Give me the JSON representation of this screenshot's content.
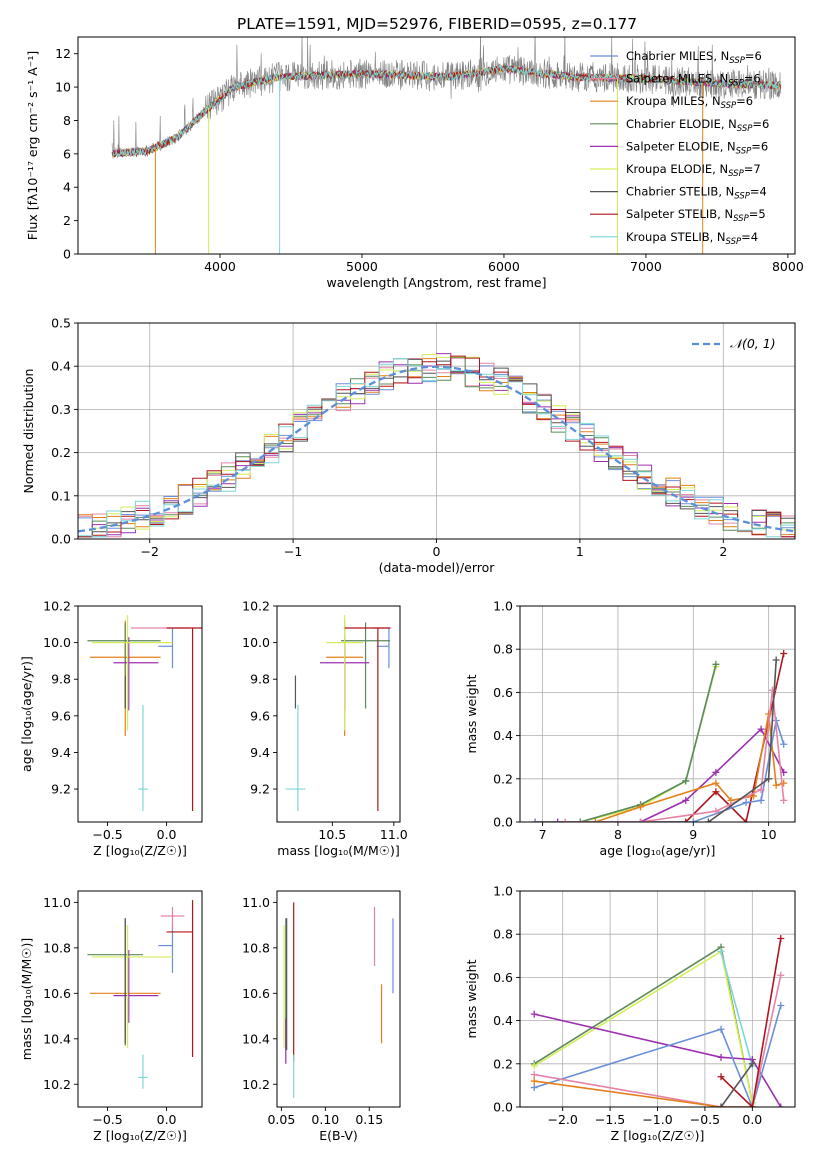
{
  "figure": {
    "title": "PLATE=1591, MJD=52976, FIBERID=0595, z=0.177"
  },
  "colors": {
    "Chabrier MILES": "#6a8fd8",
    "Salpeter MILES": "#e583a6",
    "Kroupa MILES": "#e4801b",
    "Chabrier ELODIE": "#5c8a5c",
    "Salpeter ELODIE": "#9b30b0",
    "Kroupa ELODIE": "#d4ee5a",
    "Chabrier STELIB": "#555555",
    "Salpeter STELIB": "#b0151f",
    "Kroupa STELIB": "#7fd6d6",
    "normal": "#5b8fd9",
    "grid": "#b0b0b0"
  },
  "chart_data": [
    {
      "id": "spectrum",
      "type": "line",
      "xlabel": "wavelength [Angstrom, rest frame]",
      "ylabel": "Flux [fλ10⁻¹⁷ erg cm⁻² s⁻¹ A⁻¹]",
      "xlim": [
        3000,
        8050
      ],
      "ylim": [
        0,
        13
      ],
      "xticks": [
        4000,
        5000,
        6000,
        7000,
        8000
      ],
      "yticks": [
        0,
        2,
        4,
        6,
        8,
        10,
        12
      ],
      "grid": false,
      "legend_position": "right",
      "legend": [
        {
          "model": "Chabrier MILES",
          "label": "Chabrier MILES, N",
          "n": "=6"
        },
        {
          "model": "Salpeter MILES",
          "label": "Salpeter MILES, N",
          "n": "=6"
        },
        {
          "model": "Kroupa MILES",
          "label": "Kroupa MILES, N",
          "n": "=6"
        },
        {
          "model": "Chabrier ELODIE",
          "label": "Chabrier ELODIE, N",
          "n": "=6"
        },
        {
          "model": "Salpeter ELODIE",
          "label": "Salpeter ELODIE, N",
          "n": "=6"
        },
        {
          "model": "Kroupa ELODIE",
          "label": "Kroupa ELODIE, N",
          "n": "=7"
        },
        {
          "model": "Chabrier STELIB",
          "label": "Chabrier STELIB, N",
          "n": "=4"
        },
        {
          "model": "Salpeter STELIB",
          "label": "Salpeter STELIB, N",
          "n": "=5"
        },
        {
          "model": "Kroupa STELIB",
          "label": "Kroupa STELIB, N",
          "n": "=4"
        }
      ],
      "legend_subscript": "SSP",
      "data_range": [
        3240,
        7950
      ],
      "continuum": [
        [
          3240,
          6.0
        ],
        [
          3500,
          6.2
        ],
        [
          3700,
          7.0
        ],
        [
          3900,
          8.6
        ],
        [
          4100,
          10.0
        ],
        [
          4400,
          10.6
        ],
        [
          5000,
          10.8
        ],
        [
          5600,
          10.6
        ],
        [
          6000,
          11.1
        ],
        [
          6500,
          10.6
        ],
        [
          7000,
          10.5
        ],
        [
          7500,
          10.2
        ],
        [
          7950,
          10.1
        ]
      ],
      "drops": [
        {
          "x": 3545,
          "model": "Kroupa MILES"
        },
        {
          "x": 3920,
          "model": "Kroupa ELODIE"
        },
        {
          "x": 4420,
          "model": "Kroupa STELIB"
        },
        {
          "x": 6800,
          "model": "Kroupa ELODIE"
        },
        {
          "x": 7400,
          "model": "Kroupa MILES"
        }
      ]
    },
    {
      "id": "residuals",
      "type": "histogram",
      "xlabel": "(data-model)/error",
      "ylabel": "Normed distribution",
      "xlim": [
        -2.5,
        2.5
      ],
      "ylim": [
        0,
        0.5
      ],
      "xticks": [
        -2,
        -1,
        0,
        1,
        2
      ],
      "yticks": [
        0.0,
        0.1,
        0.2,
        0.3,
        0.4,
        0.5
      ],
      "grid": true,
      "bin_width": 0.1,
      "legend": [
        {
          "label": "𝒩(0, 1)"
        }
      ],
      "legend_position": "top-right"
    },
    {
      "id": "age-vs-Z",
      "type": "errorbar",
      "xlabel": "Z [log₁₀(Z/Z☉)]",
      "ylabel": "age  [log₁₀(age/yr)]",
      "xlim": [
        -0.75,
        0.3
      ],
      "ylim": [
        9.02,
        10.2
      ],
      "xticks": [
        -0.5,
        0.0
      ],
      "yticks": [
        9.2,
        9.4,
        9.6,
        9.8,
        10.0,
        10.2
      ],
      "grid": false,
      "points": [
        {
          "model": "Chabrier MILES",
          "x": 0.05,
          "xerr": [
            0.12,
            0.0
          ],
          "y": 9.98,
          "yerr": [
            0.12,
            0.1
          ]
        },
        {
          "model": "Salpeter MILES",
          "x": -0.05,
          "xerr": [
            0.25,
            0.25
          ],
          "y": 10.08,
          "yerr": [
            0.0,
            0.0
          ]
        },
        {
          "model": "Kroupa MILES",
          "x": -0.35,
          "xerr": [
            0.3,
            0.3
          ],
          "y": 9.92,
          "yerr": [
            0.43,
            0.2
          ]
        },
        {
          "model": "Chabrier ELODIE",
          "x": -0.35,
          "xerr": [
            0.32,
            0.3
          ],
          "y": 10.01,
          "yerr": [
            0.37,
            0.1
          ]
        },
        {
          "model": "Salpeter ELODIE",
          "x": -0.32,
          "xerr": [
            0.13,
            0.25
          ],
          "y": 9.89,
          "yerr": [
            0.26,
            0.14
          ]
        },
        {
          "model": "Kroupa ELODIE",
          "x": -0.33,
          "xerr": [
            0.3,
            0.38
          ],
          "y": 10.0,
          "yerr": [
            0.48,
            0.15
          ]
        },
        {
          "model": "Chabrier STELIB",
          "x": -0.35,
          "xerr": [
            0.0,
            0.0
          ],
          "y": 9.73,
          "yerr": [
            0.09,
            0.09
          ]
        },
        {
          "model": "Salpeter STELIB",
          "x": 0.22,
          "xerr": [
            0.22,
            0.1
          ],
          "y": 10.08,
          "yerr": [
            1.0,
            0.0
          ]
        },
        {
          "model": "Kroupa STELIB",
          "x": -0.2,
          "xerr": [
            0.04,
            0.04
          ],
          "y": 9.2,
          "yerr": [
            0.12,
            0.46
          ]
        }
      ]
    },
    {
      "id": "age-vs-mass",
      "type": "errorbar",
      "xlabel": "mass [log₁₀(M/M☉)]",
      "ylabel": "",
      "xlim": [
        10.05,
        11.05
      ],
      "ylim": [
        9.02,
        10.2
      ],
      "xticks": [
        10.5,
        11.0
      ],
      "yticks": [
        9.2,
        9.4,
        9.6,
        9.8,
        10.0,
        10.2
      ],
      "grid": false,
      "points": [
        {
          "model": "Chabrier MILES",
          "x": 10.96,
          "xerr": [
            0.1,
            0.0
          ],
          "y": 9.98,
          "yerr": [
            0.12,
            0.1
          ]
        },
        {
          "model": "Salpeter MILES",
          "x": 10.93,
          "xerr": [
            0.1,
            0.05
          ],
          "y": 10.08,
          "yerr": [
            0.0,
            0.0
          ]
        },
        {
          "model": "Kroupa MILES",
          "x": 10.6,
          "xerr": [
            0.15,
            0.15
          ],
          "y": 9.92,
          "yerr": [
            0.43,
            0.2
          ]
        },
        {
          "model": "Chabrier ELODIE",
          "x": 10.77,
          "xerr": [
            0.2,
            0.2
          ],
          "y": 10.01,
          "yerr": [
            0.37,
            0.1
          ]
        },
        {
          "model": "Salpeter ELODIE",
          "x": 10.6,
          "xerr": [
            0.2,
            0.2
          ],
          "y": 9.89,
          "yerr": [
            0.26,
            0.14
          ]
        },
        {
          "model": "Kroupa ELODIE",
          "x": 10.6,
          "xerr": [
            0.15,
            0.15
          ],
          "y": 10.0,
          "yerr": [
            0.48,
            0.15
          ]
        },
        {
          "model": "Chabrier STELIB",
          "x": 10.2,
          "xerr": [
            0.0,
            0.0
          ],
          "y": 9.73,
          "yerr": [
            0.09,
            0.09
          ]
        },
        {
          "model": "Salpeter STELIB",
          "x": 10.87,
          "xerr": [
            0.27,
            0.1
          ],
          "y": 10.08,
          "yerr": [
            1.0,
            0.0
          ]
        },
        {
          "model": "Kroupa STELIB",
          "x": 10.22,
          "xerr": [
            0.1,
            0.06
          ],
          "y": 9.2,
          "yerr": [
            0.12,
            0.46
          ]
        }
      ]
    },
    {
      "id": "massweight-vs-age",
      "type": "line",
      "xlabel": "age  [log₁₀(age/yr)]",
      "ylabel": "mass weight",
      "xlim": [
        6.7,
        10.35
      ],
      "ylim": [
        0.0,
        1.0
      ],
      "xticks": [
        7,
        8,
        9,
        10
      ],
      "yticks": [
        0.0,
        0.2,
        0.4,
        0.6,
        0.8,
        1.0
      ],
      "grid": true,
      "series": [
        {
          "model": "Kroupa STELIB",
          "x": [
            7.5,
            8.3,
            8.9,
            9.3
          ],
          "y": [
            0.0,
            0.08,
            0.19,
            0.72
          ]
        },
        {
          "model": "Kroupa ELODIE",
          "x": [
            6.9,
            7.5,
            8.3,
            8.9,
            9.3
          ],
          "y": [
            0.0,
            0.0,
            0.07,
            0.19,
            0.72
          ]
        },
        {
          "model": "Chabrier ELODIE",
          "x": [
            7.5,
            8.3,
            8.9,
            9.3
          ],
          "y": [
            0.0,
            0.08,
            0.19,
            0.73
          ]
        },
        {
          "model": "Salpeter STELIB",
          "x": [
            8.3,
            8.9,
            9.3,
            9.7,
            10.2
          ],
          "y": [
            0.0,
            0.0,
            0.14,
            0.0,
            0.78
          ]
        },
        {
          "model": "Salpeter ELODIE",
          "x": [
            7.2,
            8.3,
            8.9,
            9.3,
            9.9,
            10.2
          ],
          "y": [
            0.0,
            0.0,
            0.1,
            0.23,
            0.43,
            0.23
          ]
        },
        {
          "model": "Kroupa MILES",
          "x": [
            6.9,
            7.7,
            8.3,
            9.3,
            9.5,
            9.8,
            10.0,
            10.1,
            10.2
          ],
          "y": [
            0.0,
            0.0,
            0.07,
            0.18,
            0.1,
            0.12,
            0.5,
            0.17,
            0.18
          ]
        },
        {
          "model": "Chabrier MILES",
          "x": [
            6.9,
            8.3,
            9.0,
            9.7,
            9.9,
            10.1,
            10.2
          ],
          "y": [
            0.0,
            0.0,
            0.0,
            0.09,
            0.1,
            0.47,
            0.36
          ]
        },
        {
          "model": "Salpeter MILES",
          "x": [
            7.3,
            8.3,
            9.3,
            9.9,
            10.05,
            10.2
          ],
          "y": [
            0.0,
            0.0,
            0.05,
            0.15,
            0.61,
            0.1
          ]
        },
        {
          "model": "Chabrier STELIB",
          "x": [
            9.2,
            10.0,
            10.1
          ],
          "y": [
            0.0,
            0.2,
            0.75
          ]
        }
      ]
    },
    {
      "id": "mass-vs-Z",
      "type": "errorbar",
      "xlabel": "Z [log₁₀(Z/Z☉)]",
      "ylabel": "mass [log₁₀(M/M☉)]",
      "xlim": [
        -0.75,
        0.3
      ],
      "ylim": [
        10.1,
        11.05
      ],
      "xticks": [
        -0.5,
        0.0
      ],
      "yticks": [
        10.2,
        10.4,
        10.6,
        10.8,
        11.0
      ],
      "grid": false,
      "points": [
        {
          "model": "Chabrier MILES",
          "x": 0.05,
          "xerr": [
            0.12,
            0.0
          ],
          "y": 10.81,
          "yerr": [
            0.12,
            0.1
          ]
        },
        {
          "model": "Salpeter MILES",
          "x": 0.05,
          "xerr": [
            0.1,
            0.1
          ],
          "y": 10.94,
          "yerr": [
            0.06,
            0.04
          ]
        },
        {
          "model": "Kroupa MILES",
          "x": -0.35,
          "xerr": [
            0.3,
            0.3
          ],
          "y": 10.6,
          "yerr": [
            0.2,
            0.0
          ]
        },
        {
          "model": "Chabrier ELODIE",
          "x": -0.35,
          "xerr": [
            0.32,
            0.15
          ],
          "y": 10.77,
          "yerr": [
            0.4,
            0.16
          ]
        },
        {
          "model": "Salpeter ELODIE",
          "x": -0.32,
          "xerr": [
            0.13,
            0.25
          ],
          "y": 10.59,
          "yerr": [
            0.12,
            0.2
          ]
        },
        {
          "model": "Kroupa ELODIE",
          "x": -0.33,
          "xerr": [
            0.3,
            0.38
          ],
          "y": 10.76,
          "yerr": [
            0.4,
            0.14
          ]
        },
        {
          "model": "Chabrier STELIB",
          "x": -0.35,
          "xerr": [
            0.0,
            0.0
          ],
          "y": 10.6,
          "yerr": [
            0.22,
            0.33
          ]
        },
        {
          "model": "Salpeter STELIB",
          "x": 0.22,
          "xerr": [
            0.22,
            0.0
          ],
          "y": 10.87,
          "yerr": [
            0.55,
            0.14
          ]
        },
        {
          "model": "Kroupa STELIB",
          "x": -0.2,
          "xerr": [
            0.04,
            0.04
          ],
          "y": 10.23,
          "yerr": [
            0.05,
            0.1
          ]
        }
      ]
    },
    {
      "id": "mass-vs-ebv",
      "type": "errorbar",
      "xlabel": "E(B-V)",
      "ylabel": "",
      "xlim": [
        0.045,
        0.185
      ],
      "ylim": [
        10.1,
        11.05
      ],
      "xticks": [
        0.05,
        0.1,
        0.15
      ],
      "yticks": [
        10.2,
        10.4,
        10.6,
        10.8,
        11.0
      ],
      "grid": false,
      "points": [
        {
          "model": "Chabrier MILES",
          "x": 0.177,
          "xerr": [
            0,
            0
          ],
          "y": 10.77,
          "yerr": [
            0.17,
            0.16
          ]
        },
        {
          "model": "Salpeter MILES",
          "x": 0.156,
          "xerr": [
            0,
            0
          ],
          "y": 10.85,
          "yerr": [
            0.13,
            0.13
          ]
        },
        {
          "model": "Kroupa MILES",
          "x": 0.164,
          "xerr": [
            0,
            0
          ],
          "y": 10.6,
          "yerr": [
            0.22,
            0.04
          ]
        },
        {
          "model": "Chabrier ELODIE",
          "x": 0.055,
          "xerr": [
            0,
            0
          ],
          "y": 10.65,
          "yerr": [
            0.3,
            0.28
          ]
        },
        {
          "model": "Salpeter ELODIE",
          "x": 0.055,
          "xerr": [
            0,
            0
          ],
          "y": 10.39,
          "yerr": [
            0.1,
            0.1
          ]
        },
        {
          "model": "Kroupa ELODIE",
          "x": 0.053,
          "xerr": [
            0,
            0
          ],
          "y": 10.66,
          "yerr": [
            0.3,
            0.24
          ]
        },
        {
          "model": "Chabrier STELIB",
          "x": 0.056,
          "xerr": [
            0,
            0
          ],
          "y": 10.6,
          "yerr": [
            0.25,
            0.33
          ]
        },
        {
          "model": "Salpeter STELIB",
          "x": 0.064,
          "xerr": [
            0,
            0
          ],
          "y": 10.7,
          "yerr": [
            0.4,
            0.3
          ]
        },
        {
          "model": "Kroupa STELIB",
          "x": 0.064,
          "xerr": [
            0,
            0
          ],
          "y": 10.23,
          "yerr": [
            0.09,
            0.1
          ]
        }
      ]
    },
    {
      "id": "massweight-vs-Z",
      "type": "line",
      "xlabel": "Z [log₁₀(Z/Z☉)]",
      "ylabel": "mass weight",
      "xlim": [
        -2.45,
        0.45
      ],
      "ylim": [
        0.0,
        1.0
      ],
      "xticks": [
        -2.0,
        -1.5,
        -1.0,
        -0.5,
        0.0
      ],
      "yticks": [
        0.0,
        0.2,
        0.4,
        0.6,
        0.8,
        1.0
      ],
      "grid": true,
      "series": [
        {
          "model": "Chabrier ELODIE",
          "x": [
            -2.3,
            -0.33,
            0.0
          ],
          "y": [
            0.2,
            0.74,
            0.02
          ]
        },
        {
          "model": "Kroupa ELODIE",
          "x": [
            -2.3,
            -0.33,
            0.0
          ],
          "y": [
            0.19,
            0.72,
            0.02
          ]
        },
        {
          "model": "Kroupa STELIB",
          "x": [
            -0.33,
            0.0
          ],
          "y": [
            0.72,
            0.19
          ]
        },
        {
          "model": "Salpeter ELODIE",
          "x": [
            -2.3,
            -0.33,
            0.0,
            0.3
          ],
          "y": [
            0.43,
            0.23,
            0.22,
            0.0
          ]
        },
        {
          "model": "Chabrier MILES",
          "x": [
            -2.3,
            -0.33,
            0.0,
            0.3
          ],
          "y": [
            0.09,
            0.36,
            0.0,
            0.47
          ]
        },
        {
          "model": "Salpeter MILES",
          "x": [
            -2.3,
            -0.33,
            0.0,
            0.3
          ],
          "y": [
            0.15,
            0.0,
            0.0,
            0.61
          ]
        },
        {
          "model": "Kroupa MILES",
          "x": [
            -2.3,
            -0.33,
            0.0
          ],
          "y": [
            0.12,
            0.0,
            0.0
          ]
        },
        {
          "model": "Salpeter STELIB",
          "x": [
            -0.33,
            0.0,
            0.3
          ],
          "y": [
            0.14,
            0.0,
            0.78
          ]
        },
        {
          "model": "Chabrier STELIB",
          "x": [
            -0.33,
            0.0
          ],
          "y": [
            0.0,
            0.2
          ]
        }
      ]
    }
  ]
}
